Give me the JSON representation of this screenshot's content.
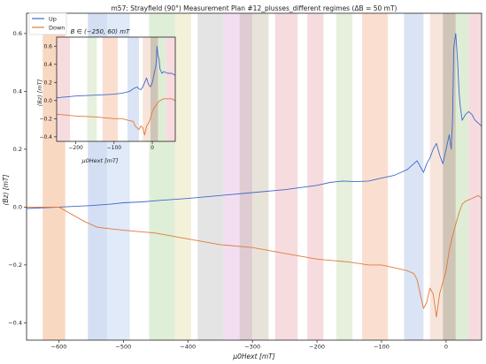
{
  "chart_data": [
    {
      "type": "line",
      "title": "m57: Strayfield (90°) Measurement Plan #12_plusses_different regimes (ΔB = 50 mT)",
      "xlabel": "μ0Hext [mT]",
      "ylabel": "⟨Bz⟩ [mT]",
      "xlim": [
        -650,
        55
      ],
      "ylim": [
        -0.46,
        0.67
      ],
      "xticks": [
        -600,
        -500,
        -400,
        -300,
        -200,
        -100,
        0
      ],
      "yticks": [
        -0.4,
        -0.2,
        0.0,
        0.2,
        0.4,
        0.6
      ],
      "grid": false,
      "legend": "top-left",
      "series": [
        {
          "name": "Up",
          "color": "#4169c8",
          "x": [
            -650,
            -600,
            -550,
            -520,
            -500,
            -470,
            -450,
            -400,
            -350,
            -300,
            -250,
            -200,
            -180,
            -160,
            -140,
            -120,
            -100,
            -80,
            -70,
            -60,
            -50,
            -45,
            -40,
            -35,
            -30,
            -25,
            -20,
            -15,
            -10,
            -5,
            0,
            5,
            8,
            10,
            12,
            15,
            18,
            20,
            22,
            25,
            30,
            35,
            40,
            45,
            50,
            55
          ],
          "y": [
            -0.005,
            0.0,
            0.005,
            0.01,
            0.015,
            0.018,
            0.022,
            0.03,
            0.04,
            0.05,
            0.06,
            0.075,
            0.085,
            0.09,
            0.088,
            0.09,
            0.1,
            0.11,
            0.12,
            0.13,
            0.15,
            0.16,
            0.14,
            0.12,
            0.15,
            0.17,
            0.2,
            0.22,
            0.18,
            0.15,
            0.2,
            0.25,
            0.2,
            0.3,
            0.55,
            0.6,
            0.5,
            0.4,
            0.35,
            0.3,
            0.32,
            0.33,
            0.32,
            0.3,
            0.29,
            0.28
          ]
        },
        {
          "name": "Down",
          "color": "#e07a3a",
          "x": [
            -650,
            -630,
            -620,
            -600,
            -560,
            -540,
            -520,
            -500,
            -450,
            -400,
            -350,
            -300,
            -250,
            -200,
            -150,
            -120,
            -100,
            -80,
            -60,
            -50,
            -45,
            -40,
            -35,
            -30,
            -25,
            -20,
            -15,
            -10,
            -5,
            0,
            5,
            10,
            15,
            20,
            25,
            30,
            40,
            50,
            55
          ],
          "y": [
            0.0,
            0.0,
            0.0,
            0.0,
            -0.05,
            -0.07,
            -0.075,
            -0.08,
            -0.09,
            -0.11,
            -0.13,
            -0.14,
            -0.16,
            -0.18,
            -0.19,
            -0.2,
            -0.2,
            -0.21,
            -0.22,
            -0.23,
            -0.25,
            -0.3,
            -0.35,
            -0.33,
            -0.28,
            -0.3,
            -0.38,
            -0.3,
            -0.26,
            -0.22,
            -0.15,
            -0.1,
            -0.06,
            -0.02,
            0.01,
            0.02,
            0.03,
            0.04,
            0.03
          ]
        }
      ],
      "bands": [
        {
          "range": [
            -625,
            -590
          ],
          "color": "#f8d4bb"
        },
        {
          "range": [
            -555,
            -525
          ],
          "color": "#cfdcf2"
        },
        {
          "range": [
            -525,
            -490
          ],
          "color": "#dde8f8"
        },
        {
          "range": [
            -460,
            -420
          ],
          "color": "#dcecd3"
        },
        {
          "range": [
            -420,
            -395
          ],
          "color": "#f3f0d6"
        },
        {
          "range": [
            -385,
            -345
          ],
          "color": "#e1e1e1"
        },
        {
          "range": [
            -345,
            -320
          ],
          "color": "#f2daf0"
        },
        {
          "range": [
            -320,
            -300
          ],
          "color": "#dcc7ce"
        },
        {
          "range": [
            -300,
            -275
          ],
          "color": "#e6e0d4"
        },
        {
          "range": [
            -265,
            -230
          ],
          "color": "#f5d8dc"
        },
        {
          "range": [
            -215,
            -190
          ],
          "color": "#f5d8dc"
        },
        {
          "range": [
            -170,
            -145
          ],
          "color": "#e3eed8"
        },
        {
          "range": [
            -130,
            -90
          ],
          "color": "#f9dccc"
        },
        {
          "range": [
            -65,
            -35
          ],
          "color": "#d6e1f3"
        },
        {
          "range": [
            -25,
            -5
          ],
          "color": "#f6e2d8"
        },
        {
          "range": [
            -5,
            15
          ],
          "color": "#cabfae"
        },
        {
          "range": [
            15,
            35
          ],
          "color": "#dbebd2"
        },
        {
          "range": [
            35,
            55
          ],
          "color": "#f5d8dc"
        }
      ]
    },
    {
      "type": "line",
      "title": "B ∈ (−250, 60) mT",
      "xlabel": "μ0Hext [mT]",
      "ylabel": "⟨Bz⟩ [mT]",
      "xlim": [
        -250,
        60
      ],
      "ylim": [
        -0.45,
        0.7
      ],
      "xticks": [
        -200,
        -100,
        0
      ],
      "yticks": [
        -0.4,
        -0.2,
        0.0,
        0.2,
        0.4,
        0.6
      ],
      "grid": false,
      "series": [
        {
          "name": "Up",
          "color": "#4169c8",
          "x": [
            -250,
            -200,
            -150,
            -100,
            -80,
            -60,
            -50,
            -40,
            -35,
            -30,
            -25,
            -20,
            -15,
            -10,
            -5,
            0,
            5,
            10,
            12,
            15,
            18,
            20,
            25,
            30,
            40,
            50,
            60
          ],
          "y": [
            0.03,
            0.05,
            0.06,
            0.07,
            0.08,
            0.1,
            0.13,
            0.15,
            0.13,
            0.12,
            0.15,
            0.2,
            0.25,
            0.18,
            0.15,
            0.2,
            0.3,
            0.4,
            0.6,
            0.5,
            0.45,
            0.35,
            0.3,
            0.32,
            0.3,
            0.3,
            0.28
          ]
        },
        {
          "name": "Down",
          "color": "#e07a3a",
          "x": [
            -250,
            -200,
            -150,
            -100,
            -80,
            -60,
            -50,
            -45,
            -40,
            -35,
            -30,
            -25,
            -20,
            -15,
            -10,
            -5,
            0,
            5,
            10,
            15,
            20,
            30,
            40,
            50,
            60
          ],
          "y": [
            -0.15,
            -0.17,
            -0.18,
            -0.2,
            -0.2,
            -0.22,
            -0.23,
            -0.28,
            -0.3,
            -0.32,
            -0.28,
            -0.3,
            -0.38,
            -0.28,
            -0.25,
            -0.2,
            -0.12,
            -0.08,
            -0.05,
            -0.02,
            0.0,
            0.02,
            0.02,
            0.02,
            0.0
          ]
        }
      ],
      "bands": [
        {
          "range": [
            -250,
            -215
          ],
          "color": "#f5d8dc"
        },
        {
          "range": [
            -170,
            -145
          ],
          "color": "#e3eed8"
        },
        {
          "range": [
            -130,
            -90
          ],
          "color": "#f9dccc"
        },
        {
          "range": [
            -65,
            -35
          ],
          "color": "#d6e1f3"
        },
        {
          "range": [
            -25,
            -5
          ],
          "color": "#f6e2d8"
        },
        {
          "range": [
            -5,
            15
          ],
          "color": "#cabfae"
        },
        {
          "range": [
            15,
            35
          ],
          "color": "#dbebd2"
        },
        {
          "range": [
            35,
            60
          ],
          "color": "#f5d8dc"
        }
      ]
    }
  ]
}
